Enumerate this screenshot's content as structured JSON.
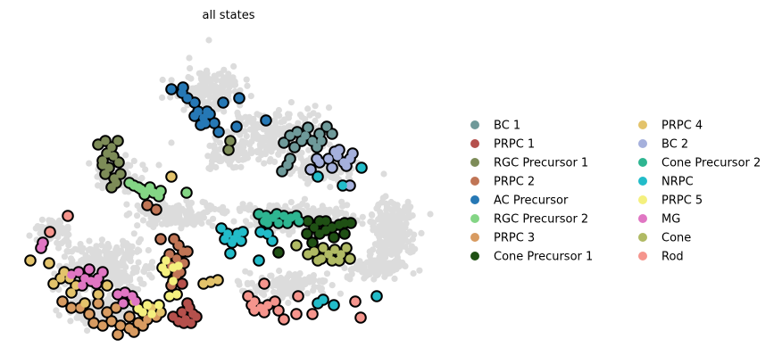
{
  "chart_data": {
    "type": "scatter",
    "title": "all states",
    "xlabel": "",
    "ylabel": "",
    "axes_visible": false,
    "grid": false,
    "legend_position": "right",
    "legend_columns": 2,
    "background_points_color": "#dcdcdc",
    "highlight_edge_color": "#000000",
    "series": [
      {
        "name": "BC 1",
        "color": "#6f9a9a",
        "points": [
          [
            318,
            160
          ],
          [
            325,
            152
          ],
          [
            333,
            148
          ],
          [
            342,
            152
          ],
          [
            350,
            158
          ],
          [
            358,
            150
          ],
          [
            366,
            142
          ],
          [
            345,
            143
          ],
          [
            330,
            165
          ],
          [
            355,
            165
          ],
          [
            372,
            150
          ],
          [
            338,
            158
          ],
          [
            360,
            158
          ],
          [
            322,
            185
          ],
          [
            316,
            192
          ],
          [
            325,
            178
          ]
        ]
      },
      {
        "name": "PRPC 1",
        "color": "#b5504c",
        "points": [
          [
            204,
            350
          ],
          [
            212,
            345
          ],
          [
            208,
            358
          ],
          [
            200,
            360
          ],
          [
            216,
            352
          ],
          [
            210,
            340
          ],
          [
            194,
            355
          ],
          [
            204,
            318
          ],
          [
            198,
            330
          ],
          [
            220,
            355
          ],
          [
            206,
            362
          ],
          [
            214,
            362
          ]
        ]
      },
      {
        "name": "RGC Precursor 1",
        "color": "#7d8c58",
        "points": [
          [
            110,
            162
          ],
          [
            118,
            158
          ],
          [
            125,
            165
          ],
          [
            120,
            172
          ],
          [
            115,
            180
          ],
          [
            122,
            188
          ],
          [
            118,
            195
          ],
          [
            128,
            200
          ],
          [
            135,
            195
          ],
          [
            130,
            205
          ],
          [
            125,
            210
          ],
          [
            115,
            185
          ],
          [
            133,
            182
          ],
          [
            132,
            158
          ],
          [
            258,
            158
          ],
          [
            256,
            168
          ],
          [
            127,
            175
          ]
        ]
      },
      {
        "name": "PRPC 2",
        "color": "#c07555",
        "points": [
          [
            195,
            268
          ],
          [
            200,
            275
          ],
          [
            205,
            282
          ],
          [
            198,
            290
          ],
          [
            192,
            298
          ],
          [
            202,
            305
          ],
          [
            206,
            295
          ],
          [
            210,
            282
          ],
          [
            198,
            308
          ],
          [
            192,
            320
          ],
          [
            180,
            268
          ],
          [
            165,
            230
          ],
          [
            175,
            235
          ],
          [
            190,
            285
          ]
        ]
      },
      {
        "name": "AC Precursor",
        "color": "#2678b5",
        "points": [
          [
            192,
            100
          ],
          [
            204,
            104
          ],
          [
            210,
            110
          ],
          [
            218,
            115
          ],
          [
            222,
            125
          ],
          [
            228,
            132
          ],
          [
            218,
            130
          ],
          [
            230,
            138
          ],
          [
            235,
            128
          ],
          [
            225,
            140
          ],
          [
            245,
            148
          ],
          [
            240,
            138
          ],
          [
            205,
            98
          ],
          [
            250,
            115
          ],
          [
            268,
            110
          ],
          [
            265,
            142
          ],
          [
            298,
            135
          ],
          [
            232,
            125
          ]
        ]
      },
      {
        "name": "RGC Precursor 2",
        "color": "#84d585",
        "points": [
          [
            150,
            208
          ],
          [
            158,
            212
          ],
          [
            165,
            214
          ],
          [
            172,
            216
          ],
          [
            178,
            220
          ],
          [
            162,
            218
          ],
          [
            155,
            210
          ],
          [
            168,
            210
          ],
          [
            145,
            205
          ],
          [
            180,
            214
          ],
          [
            209,
            216
          ]
        ]
      },
      {
        "name": "PRPC 3",
        "color": "#d89b61",
        "points": [
          [
            105,
            362
          ],
          [
            115,
            365
          ],
          [
            125,
            360
          ],
          [
            135,
            365
          ],
          [
            145,
            368
          ],
          [
            155,
            362
          ],
          [
            165,
            358
          ],
          [
            175,
            355
          ],
          [
            120,
            350
          ],
          [
            100,
            352
          ],
          [
            90,
            345
          ],
          [
            80,
            345
          ],
          [
            70,
            338
          ],
          [
            130,
            345
          ],
          [
            110,
            340
          ],
          [
            145,
            355
          ],
          [
            160,
            365
          ],
          [
            132,
            375
          ],
          [
            150,
            372
          ]
        ]
      },
      {
        "name": "Cone Precursor 1",
        "color": "#1f5014",
        "points": [
          [
            345,
            248
          ],
          [
            352,
            255
          ],
          [
            358,
            262
          ],
          [
            365,
            258
          ],
          [
            372,
            255
          ],
          [
            380,
            252
          ],
          [
            386,
            250
          ],
          [
            350,
            272
          ],
          [
            344,
            262
          ],
          [
            358,
            248
          ],
          [
            374,
            266
          ],
          [
            386,
            262
          ],
          [
            312,
            283
          ],
          [
            393,
            250
          ],
          [
            365,
            248
          ]
        ]
      },
      {
        "name": "PRPC 4",
        "color": "#e3c36b",
        "points": [
          [
            192,
            198
          ],
          [
            72,
            305
          ],
          [
            78,
            312
          ],
          [
            85,
            320
          ],
          [
            80,
            328
          ],
          [
            68,
            312
          ],
          [
            55,
            295
          ],
          [
            34,
            292
          ],
          [
            228,
            318
          ],
          [
            236,
            316
          ],
          [
            244,
            314
          ],
          [
            120,
            320
          ],
          [
            110,
            330
          ],
          [
            95,
            340
          ],
          [
            150,
            338
          ],
          [
            170,
            345
          ],
          [
            180,
            350
          ],
          [
            60,
            318
          ]
        ]
      },
      {
        "name": "BC 2",
        "color": "#a5b0dc",
        "points": [
          [
            348,
            190
          ],
          [
            358,
            182
          ],
          [
            368,
            178
          ],
          [
            378,
            175
          ],
          [
            385,
            182
          ],
          [
            392,
            178
          ],
          [
            380,
            168
          ],
          [
            388,
            186
          ],
          [
            395,
            172
          ],
          [
            355,
            178
          ],
          [
            372,
            188
          ],
          [
            392,
            208
          ],
          [
            375,
            170
          ]
        ]
      },
      {
        "name": "Cone Precursor 2",
        "color": "#2eb591",
        "points": [
          [
            290,
            240
          ],
          [
            298,
            242
          ],
          [
            306,
            244
          ],
          [
            312,
            250
          ],
          [
            318,
            242
          ],
          [
            326,
            244
          ],
          [
            332,
            242
          ],
          [
            300,
            250
          ],
          [
            322,
            250
          ],
          [
            310,
            240
          ],
          [
            335,
            248
          ],
          [
            296,
            248
          ]
        ]
      },
      {
        "name": "NRPC",
        "color": "#22bcc9",
        "points": [
          [
            248,
            256
          ],
          [
            255,
            262
          ],
          [
            262,
            268
          ],
          [
            270,
            270
          ],
          [
            260,
            272
          ],
          [
            252,
            268
          ],
          [
            266,
            262
          ],
          [
            258,
            284
          ],
          [
            272,
            260
          ],
          [
            292,
            260
          ],
          [
            300,
            262
          ],
          [
            305,
            270
          ],
          [
            290,
            292
          ],
          [
            405,
            188
          ],
          [
            356,
            198
          ],
          [
            384,
            208
          ],
          [
            422,
            332
          ],
          [
            374,
            342
          ],
          [
            362,
            336
          ],
          [
            356,
            340
          ]
        ]
      },
      {
        "name": "PRPC 5",
        "color": "#f4f07e",
        "points": [
          [
            186,
            292
          ],
          [
            194,
            300
          ],
          [
            186,
            305
          ],
          [
            194,
            315
          ],
          [
            190,
            332
          ],
          [
            198,
            330
          ],
          [
            182,
            300
          ],
          [
            200,
            298
          ],
          [
            160,
            350
          ],
          [
            165,
            342
          ],
          [
            155,
            346
          ],
          [
            170,
            352
          ],
          [
            178,
            342
          ]
        ]
      },
      {
        "name": "MG",
        "color": "#e076c3",
        "points": [
          [
            48,
            272
          ],
          [
            46,
            278
          ],
          [
            80,
            308
          ],
          [
            88,
            305
          ],
          [
            95,
            312
          ],
          [
            102,
            315
          ],
          [
            110,
            312
          ],
          [
            115,
            305
          ],
          [
            100,
            302
          ],
          [
            92,
            320
          ],
          [
            140,
            328
          ],
          [
            148,
            332
          ],
          [
            138,
            340
          ],
          [
            132,
            330
          ],
          [
            152,
            338
          ],
          [
            108,
            318
          ]
        ]
      },
      {
        "name": "Cone",
        "color": "#b0ba64",
        "points": [
          [
            332,
            275
          ],
          [
            345,
            285
          ],
          [
            352,
            282
          ],
          [
            360,
            290
          ],
          [
            368,
            285
          ],
          [
            375,
            280
          ],
          [
            382,
            285
          ],
          [
            388,
            278
          ],
          [
            392,
            290
          ],
          [
            380,
            292
          ],
          [
            362,
            278
          ],
          [
            356,
            292
          ],
          [
            372,
            292
          ]
        ]
      },
      {
        "name": "Rod",
        "color": "#f5958d",
        "points": [
          [
            76,
            242
          ],
          [
            56,
            260
          ],
          [
            278,
            332
          ],
          [
            285,
            338
          ],
          [
            292,
            345
          ],
          [
            300,
            342
          ],
          [
            308,
            338
          ],
          [
            296,
            350
          ],
          [
            285,
            348
          ],
          [
            312,
            348
          ],
          [
            318,
            358
          ],
          [
            332,
            352
          ],
          [
            350,
            352
          ],
          [
            296,
            318
          ],
          [
            334,
            332
          ],
          [
            398,
            338
          ],
          [
            404,
            356
          ],
          [
            282,
            342
          ]
        ]
      }
    ]
  }
}
